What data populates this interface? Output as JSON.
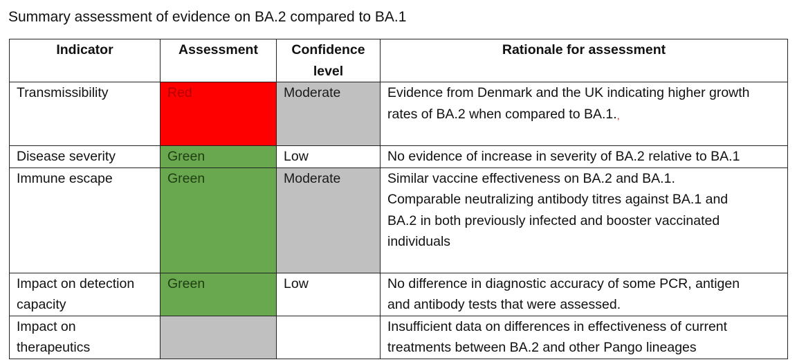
{
  "title": "Summary assessment of evidence on BA.2 compared to BA.1",
  "headers": {
    "indicator": "Indicator",
    "assessment": "Assessment",
    "confidence_line1": "Confidence",
    "confidence_line2": "level",
    "rationale": "Rationale for assessment"
  },
  "rows": [
    {
      "indicator": [
        "Transmissibility"
      ],
      "assessment": "Red",
      "assessment_color": "#ff0000",
      "confidence": "Moderate",
      "confidence_color": "#c0c0c0",
      "rationale": [
        "Evidence from Denmark and the UK indicating higher growth",
        "rates of BA.2 when compared to BA.1."
      ],
      "edit_mark": ","
    },
    {
      "indicator": [
        "Disease severity"
      ],
      "assessment": "Green",
      "assessment_color": "#6aa84f",
      "confidence": "Low",
      "confidence_color": "#ffffff",
      "rationale": [
        "No evidence of increase in severity of BA.2 relative to BA.1"
      ]
    },
    {
      "indicator": [
        "Immune escape"
      ],
      "assessment": "Green",
      "assessment_color": "#6aa84f",
      "confidence": "Moderate",
      "confidence_color": "#c0c0c0",
      "rationale": [
        "Similar vaccine effectiveness on BA.2 and BA.1.",
        "Comparable neutralizing antibody titres against BA.1 and",
        "BA.2 in both previously infected and booster vaccinated",
        "individuals"
      ]
    },
    {
      "indicator": [
        "Impact on detection",
        "capacity"
      ],
      "assessment": "Green",
      "assessment_color": "#6aa84f",
      "confidence": "Low",
      "confidence_color": "#ffffff",
      "rationale": [
        "No difference in diagnostic accuracy of some PCR, antigen",
        "and antibody tests that were assessed."
      ]
    },
    {
      "indicator": [
        "Impact on",
        "therapeutics"
      ],
      "assessment": "",
      "assessment_color": "#c0c0c0",
      "confidence": "",
      "confidence_color": "#ffffff",
      "rationale": [
        "Insufficient data on differences in effectiveness of current",
        "treatments between BA.2 and other Pango lineages"
      ]
    }
  ]
}
